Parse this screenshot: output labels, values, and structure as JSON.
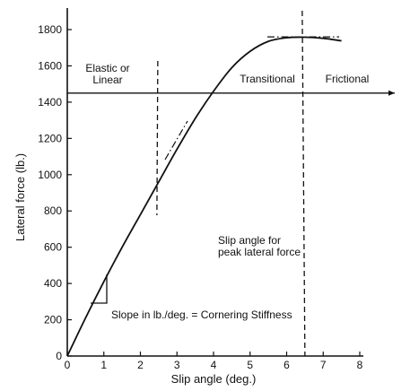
{
  "chart_data": {
    "type": "line",
    "xlabel": "Slip angle (deg.)",
    "ylabel": "Lateral force (lb.)",
    "xlim": [
      0,
      8
    ],
    "ylim": [
      0,
      1900
    ],
    "x_ticks": [
      0,
      1,
      2,
      3,
      4,
      5,
      6,
      7,
      8
    ],
    "y_ticks": [
      0,
      200,
      400,
      600,
      800,
      1000,
      1200,
      1400,
      1600,
      1800
    ],
    "series": [
      {
        "x": [
          0,
          0.5,
          1.0,
          1.5,
          2.0,
          2.5,
          3.0,
          3.5,
          4.0,
          4.5,
          5.0,
          5.5,
          6.0,
          6.5,
          7.0,
          7.5
        ],
        "y": [
          0,
          210,
          410,
          600,
          780,
          960,
          1140,
          1310,
          1460,
          1590,
          1680,
          1735,
          1755,
          1758,
          1752,
          1738
        ]
      }
    ],
    "reference_lines": {
      "boundary_linear_x": 2.5,
      "peak_slip_x": 6.5,
      "region_arrow_y": 1450,
      "peak_tangent_y": 1760
    },
    "region_labels": {
      "elastic": "Elastic or\nLinear",
      "transitional": "Transitional",
      "frictional": "Frictional"
    },
    "annotations": {
      "peak": "Slip angle for\npeak lateral force",
      "slope": "Slope in lb./deg. = Cornering Stiffness"
    },
    "grid": false,
    "legend": "none"
  }
}
